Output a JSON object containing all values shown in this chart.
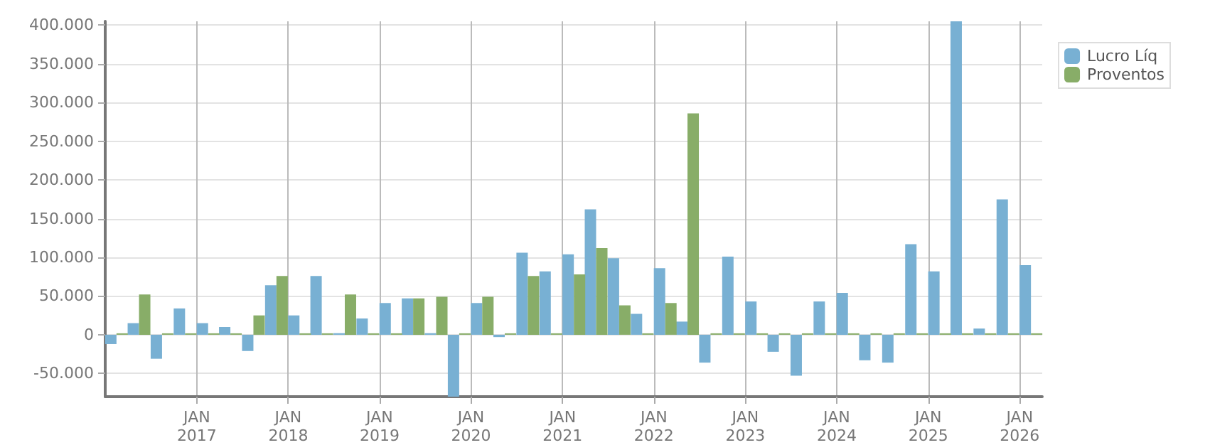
{
  "chart_data": {
    "type": "bar",
    "legend": "top right",
    "grid": true,
    "x": [
      "2016-02-15",
      "2016-05-15",
      "2016-08-15",
      "2016-11-15",
      "2017-02-15",
      "2017-05-15",
      "2017-08-15",
      "2017-11-15",
      "2018-02-15",
      "2018-05-15",
      "2018-08-15",
      "2018-11-15",
      "2019-02-15",
      "2019-05-15",
      "2019-08-15",
      "2019-11-15",
      "2020-02-15",
      "2020-05-15",
      "2020-08-15",
      "2020-11-15",
      "2021-02-15",
      "2021-05-15",
      "2021-08-15",
      "2021-11-15",
      "2022-02-15",
      "2022-05-15",
      "2022-08-15",
      "2022-11-15",
      "2023-02-15",
      "2023-05-15",
      "2023-08-15",
      "2023-11-15",
      "2024-02-15",
      "2024-05-15",
      "2024-08-15",
      "2024-11-15",
      "2025-02-15",
      "2025-05-15",
      "2025-08-15",
      "2025-11-15",
      "2026-02-15"
    ],
    "series": [
      {
        "name": "Lucro Líq",
        "color": "#78b0d3",
        "values": [
          -12000,
          15000,
          -31000,
          34000,
          15000,
          10000,
          -21000,
          64000,
          25000,
          76000,
          2000,
          21000,
          41000,
          47000,
          2000,
          -80000,
          41000,
          -3000,
          106000,
          82000,
          104000,
          162000,
          99000,
          27000,
          86000,
          17000,
          -36000,
          101000,
          43000,
          -22000,
          -53000,
          43000,
          54000,
          -33000,
          -36000,
          117000,
          82000,
          405000,
          8000,
          175000,
          90000
        ]
      },
      {
        "name": "Proventos",
        "color": "#88ad68",
        "values": [
          0,
          52000,
          0,
          0,
          0,
          0,
          25000,
          76000,
          0,
          0,
          52000,
          0,
          0,
          47000,
          49000,
          0,
          49000,
          0,
          76000,
          0,
          78000,
          112000,
          38000,
          0,
          41000,
          286000,
          0,
          0,
          0,
          0,
          0,
          0,
          0,
          0,
          0,
          0,
          0,
          0,
          0,
          0,
          0
        ]
      }
    ],
    "xlim": [
      "2016-01",
      "2026-04"
    ],
    "xticks": [
      {
        "value": "2017-01",
        "label": "JAN\n2017"
      },
      {
        "value": "2018-01",
        "label": "JAN\n2018"
      },
      {
        "value": "2019-01",
        "label": "JAN\n2019"
      },
      {
        "value": "2020-01",
        "label": "JAN\n2020"
      },
      {
        "value": "2021-01",
        "label": "JAN\n2021"
      },
      {
        "value": "2022-01",
        "label": "JAN\n2022"
      },
      {
        "value": "2023-01",
        "label": "JAN\n2023"
      },
      {
        "value": "2024-01",
        "label": "JAN\n2024"
      },
      {
        "value": "2025-01",
        "label": "JAN\n2025"
      },
      {
        "value": "2026-01",
        "label": "JAN\n2026"
      }
    ],
    "ylim": [
      -80000,
      405000
    ],
    "yticks": [
      {
        "value": -50000,
        "label": "-50.000"
      },
      {
        "value": 0,
        "label": "0"
      },
      {
        "value": 50000,
        "label": "50.000"
      },
      {
        "value": 100000,
        "label": "100.000"
      },
      {
        "value": 150000,
        "label": "150.000"
      },
      {
        "value": 200000,
        "label": "200.000"
      },
      {
        "value": 250000,
        "label": "250.000"
      },
      {
        "value": 300000,
        "label": "300.000"
      },
      {
        "value": 350000,
        "label": "350.000"
      },
      {
        "value": 400000,
        "label": "400.000"
      }
    ]
  }
}
